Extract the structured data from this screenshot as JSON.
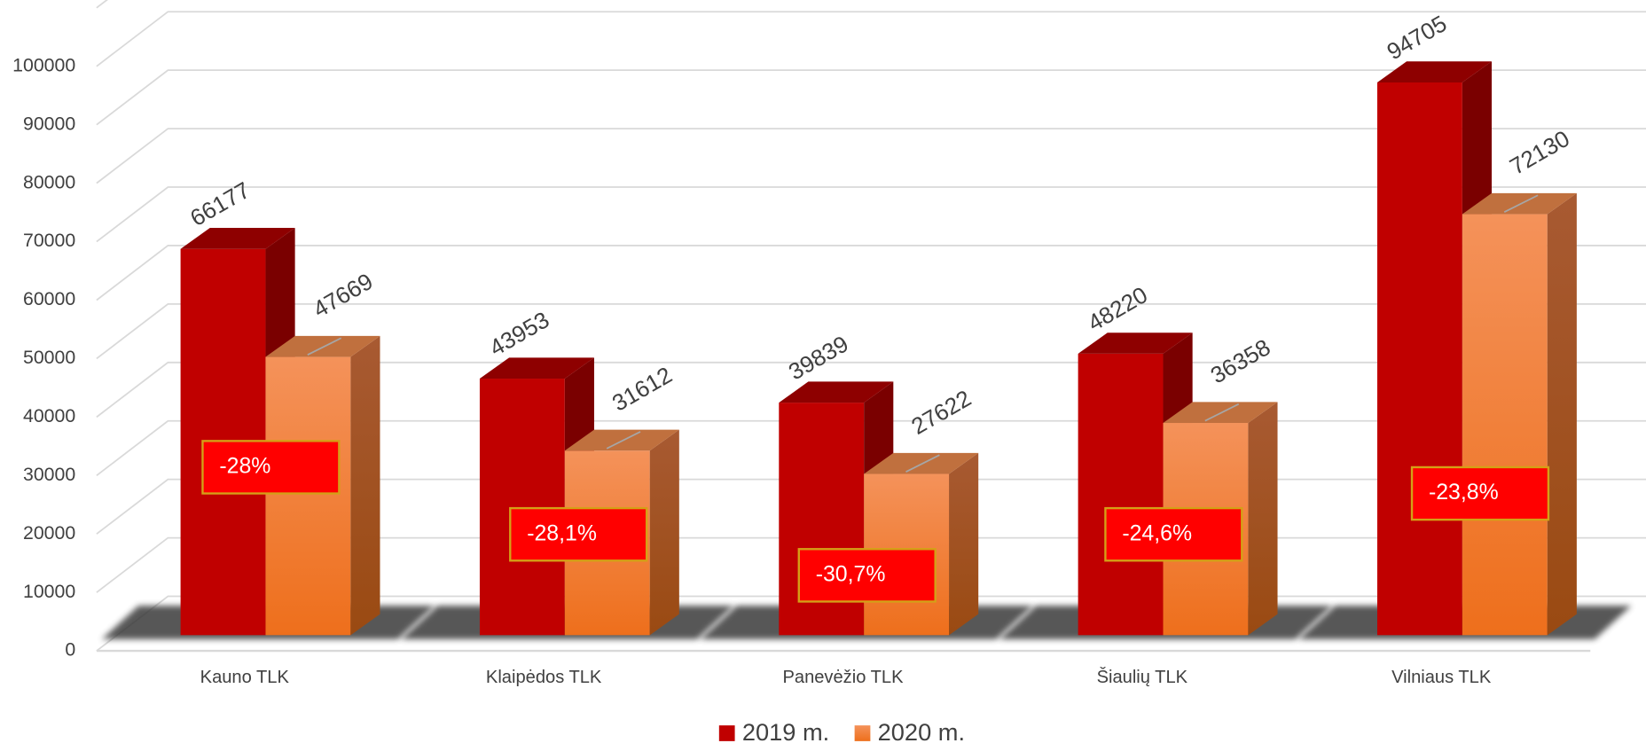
{
  "chart_data": {
    "type": "bar3d",
    "categories": [
      "Kauno TLK",
      "Klaipėdos TLK",
      "Panevėžio TLK",
      "Šiaulių TLK",
      "Vilniaus TLK"
    ],
    "series": [
      {
        "name": "2019 m.",
        "color": "#c00000",
        "values": [
          66177,
          43953,
          39839,
          48220,
          94705
        ]
      },
      {
        "name": "2020 m.",
        "color": "#f07a2c",
        "values": [
          47669,
          31612,
          27622,
          36358,
          72130
        ]
      }
    ],
    "annotations": [
      "-28%",
      "-28,1%",
      "-30,7%",
      "-24,6%",
      "-23,8%"
    ],
    "ylim": [
      0,
      110000
    ],
    "yticks": [
      0,
      10000,
      20000,
      30000,
      40000,
      50000,
      60000,
      70000,
      80000,
      90000,
      100000
    ],
    "grid": true,
    "legend": "bottom"
  }
}
